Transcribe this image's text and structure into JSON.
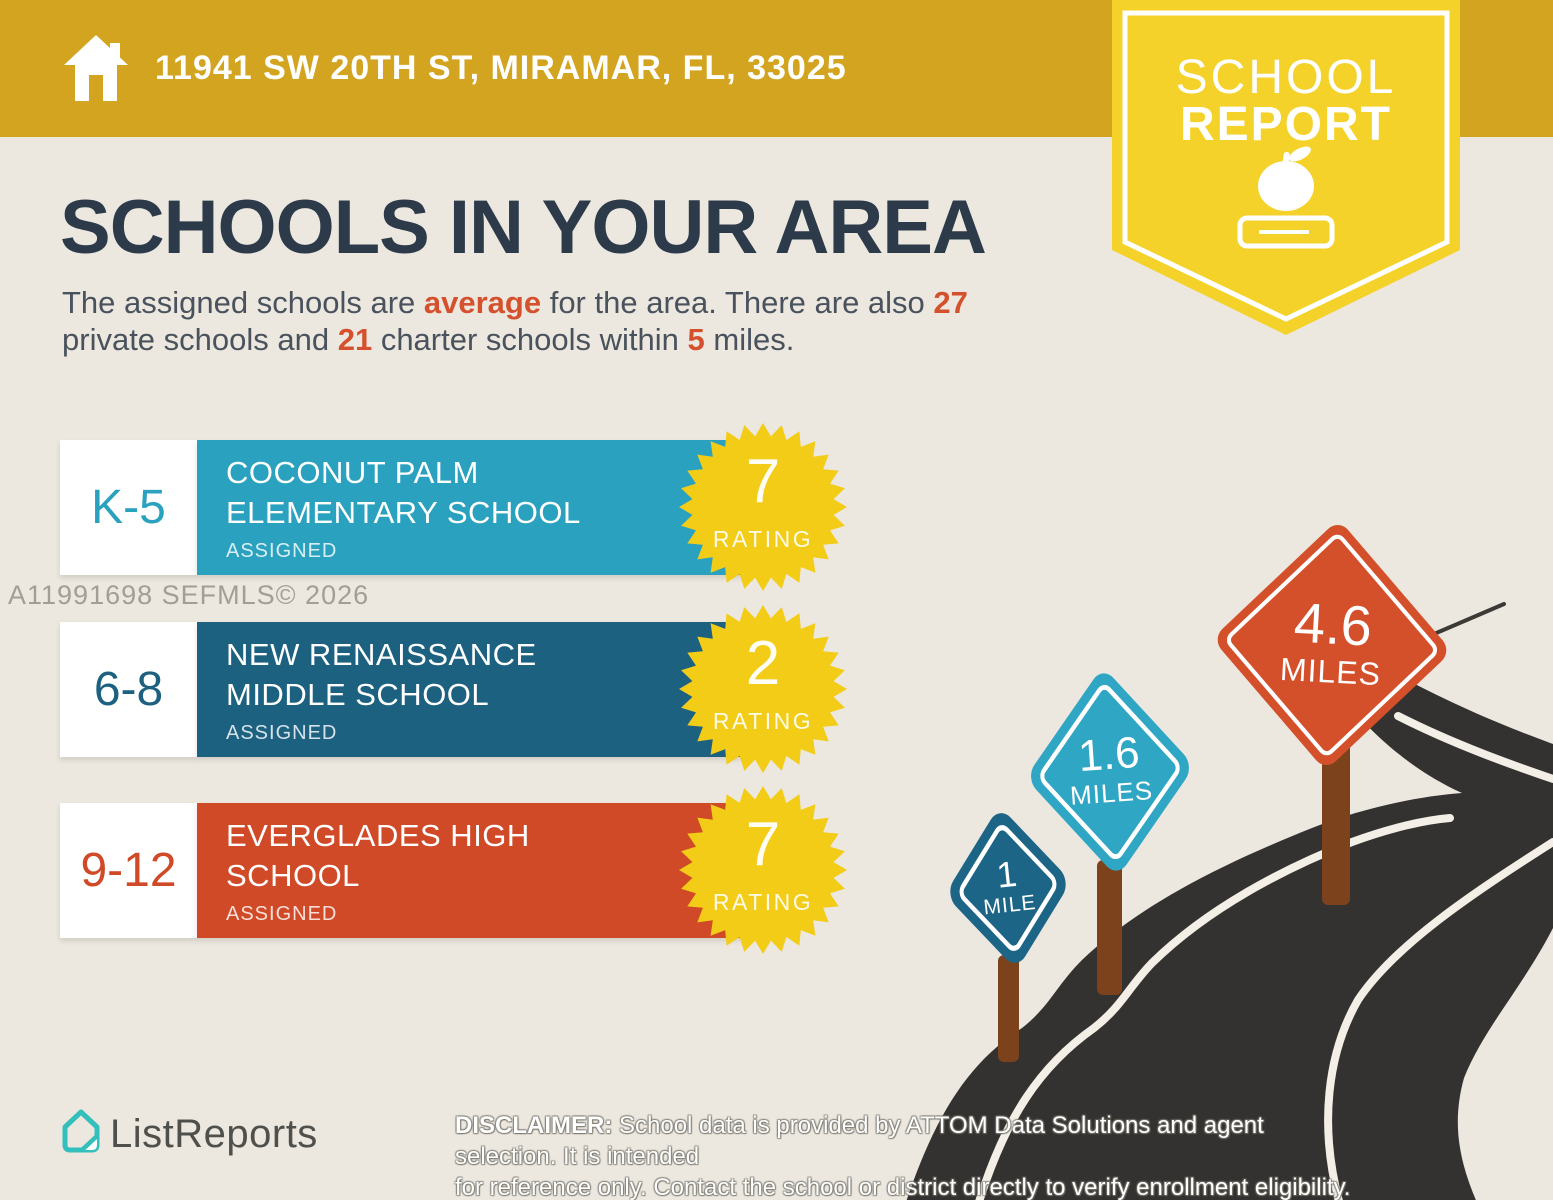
{
  "colors": {
    "gold": "#D2A41F",
    "badge-yellow": "#F4D22A",
    "star-yellow": "#F2CC17",
    "beige": "#ECE8DF",
    "navy": "#2C3A4A",
    "body": "#49525D",
    "highlight": "#D5512D",
    "teal": "#2AA2BF",
    "blue": "#1D6180",
    "red": "#D04A28",
    "sign-small": "#1D6586",
    "sign-medium": "#2FA6C3",
    "sign-red": "#D4502B",
    "road": "#343230",
    "post-brown": "#7C421C",
    "watermark": "#A29E96",
    "brand-teal": "#33BFBB",
    "brand-text": "#4F4F4C"
  },
  "header": {
    "address": "11941 SW 20TH ST, MIRAMAR, FL, 33025"
  },
  "badge": {
    "line1": "SCHOOL",
    "line2": "REPORT"
  },
  "main": {
    "title": "SCHOOLS IN YOUR AREA",
    "subtitle": {
      "p1": "The assigned schools are ",
      "hl1": "average",
      "p2": " for the area. There are also ",
      "hl2": "27",
      "p3": "private schools and ",
      "hl3": "21",
      "p4": " charter schools within ",
      "hl4": "5",
      "p5": " miles."
    }
  },
  "watermark": "A11991698  SEFMLS© 2026",
  "schools": [
    {
      "grades": "K-5",
      "name_line1": "COCONUT PALM",
      "name_line2": "ELEMENTARY SCHOOL",
      "status": "ASSIGNED",
      "rating": "7",
      "rating_label": "RATING"
    },
    {
      "grades": "6-8",
      "name_line1": "NEW RENAISSANCE",
      "name_line2": "MIDDLE SCHOOL",
      "status": "ASSIGNED",
      "rating": "2",
      "rating_label": "RATING"
    },
    {
      "grades": "9-12",
      "name_line1": "EVERGLADES HIGH",
      "name_line2": "SCHOOL",
      "status": "ASSIGNED",
      "rating": "7",
      "rating_label": "RATING"
    }
  ],
  "signs": [
    {
      "distance": "1",
      "unit": "MILE"
    },
    {
      "distance": "1.6",
      "unit": "MILES"
    },
    {
      "distance": "4.6",
      "unit": "MILES"
    }
  ],
  "footer": {
    "brand": "ListReports",
    "disclaimer_label": "DISCLAIMER:",
    "disclaimer_line1": " School data is provided by ATTOM Data Solutions and agent selection. It is intended",
    "disclaimer_line2": "for reference only. Contact the school or district directly to verify enrollment eligibility."
  }
}
